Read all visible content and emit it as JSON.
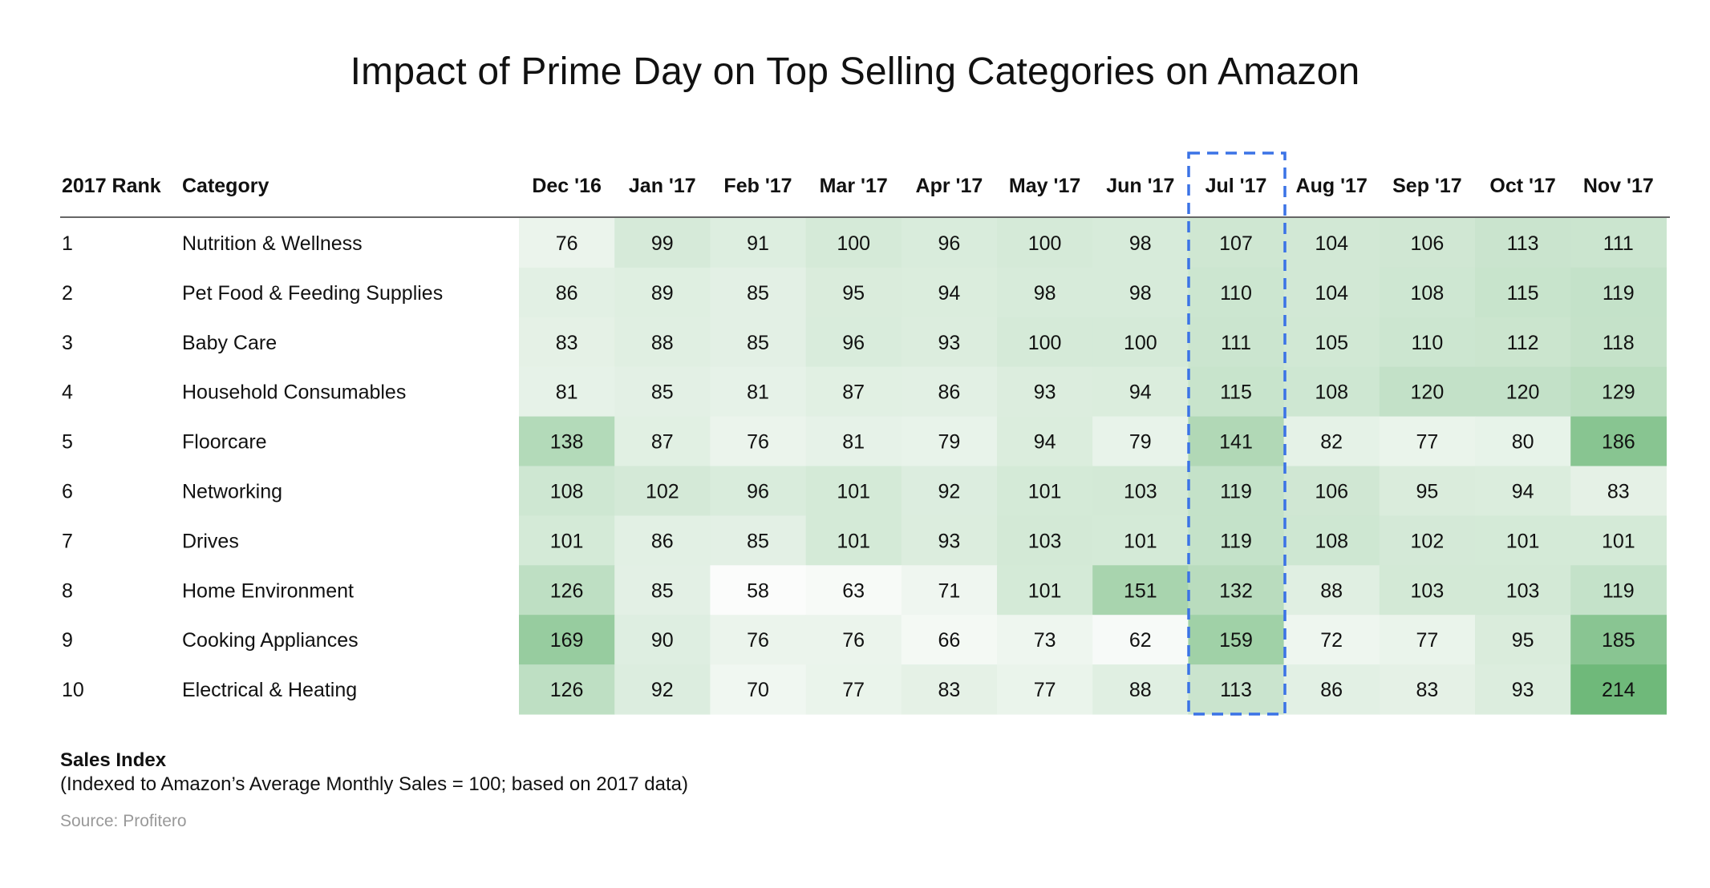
{
  "chart_data": {
    "type": "heatmap",
    "title": "Impact of Prime Day on Top Selling Categories on Amazon",
    "row_headers": [
      "2017 Rank",
      "Category"
    ],
    "months": [
      "Dec '16",
      "Jan '17",
      "Feb '17",
      "Mar '17",
      "Apr '17",
      "May '17",
      "Jun '17",
      "Jul '17",
      "Aug '17",
      "Sep '17",
      "Oct '17",
      "Nov '17"
    ],
    "highlight_month": "Jul '17",
    "rows": [
      {
        "rank": "1",
        "category": "Nutrition & Wellness",
        "values": [
          76,
          99,
          91,
          100,
          96,
          100,
          98,
          107,
          104,
          106,
          113,
          111
        ]
      },
      {
        "rank": "2",
        "category": "Pet Food & Feeding Supplies",
        "values": [
          86,
          89,
          85,
          95,
          94,
          98,
          98,
          110,
          104,
          108,
          115,
          119
        ]
      },
      {
        "rank": "3",
        "category": "Baby Care",
        "values": [
          83,
          88,
          85,
          96,
          93,
          100,
          100,
          111,
          105,
          110,
          112,
          118
        ]
      },
      {
        "rank": "4",
        "category": "Household Consumables",
        "values": [
          81,
          85,
          81,
          87,
          86,
          93,
          94,
          115,
          108,
          120,
          120,
          129
        ]
      },
      {
        "rank": "5",
        "category": "Floorcare",
        "values": [
          138,
          87,
          76,
          81,
          79,
          94,
          79,
          141,
          82,
          77,
          80,
          186
        ]
      },
      {
        "rank": "6",
        "category": "Networking",
        "values": [
          108,
          102,
          96,
          101,
          92,
          101,
          103,
          119,
          106,
          95,
          94,
          83
        ]
      },
      {
        "rank": "7",
        "category": "Drives",
        "values": [
          101,
          86,
          85,
          101,
          93,
          103,
          101,
          119,
          108,
          102,
          101,
          101
        ]
      },
      {
        "rank": "8",
        "category": "Home Environment",
        "values": [
          126,
          85,
          58,
          63,
          71,
          101,
          151,
          132,
          88,
          103,
          103,
          119
        ]
      },
      {
        "rank": "9",
        "category": "Cooking Appliances",
        "values": [
          169,
          90,
          76,
          76,
          66,
          73,
          62,
          159,
          72,
          77,
          95,
          185
        ]
      },
      {
        "rank": "10",
        "category": "Electrical & Heating",
        "values": [
          126,
          92,
          70,
          77,
          83,
          77,
          88,
          113,
          86,
          83,
          93,
          214
        ]
      }
    ],
    "color_scale": {
      "low": "#fbfcfb",
      "high": "#6fb97a",
      "min": 58,
      "max": 214
    },
    "highlight_color": "#3b73e6"
  },
  "notes": {
    "label": "Sales Index",
    "description": "(Indexed to Amazon’s Average Monthly Sales = 100; based on 2017 data)",
    "source": "Source: Profitero"
  }
}
